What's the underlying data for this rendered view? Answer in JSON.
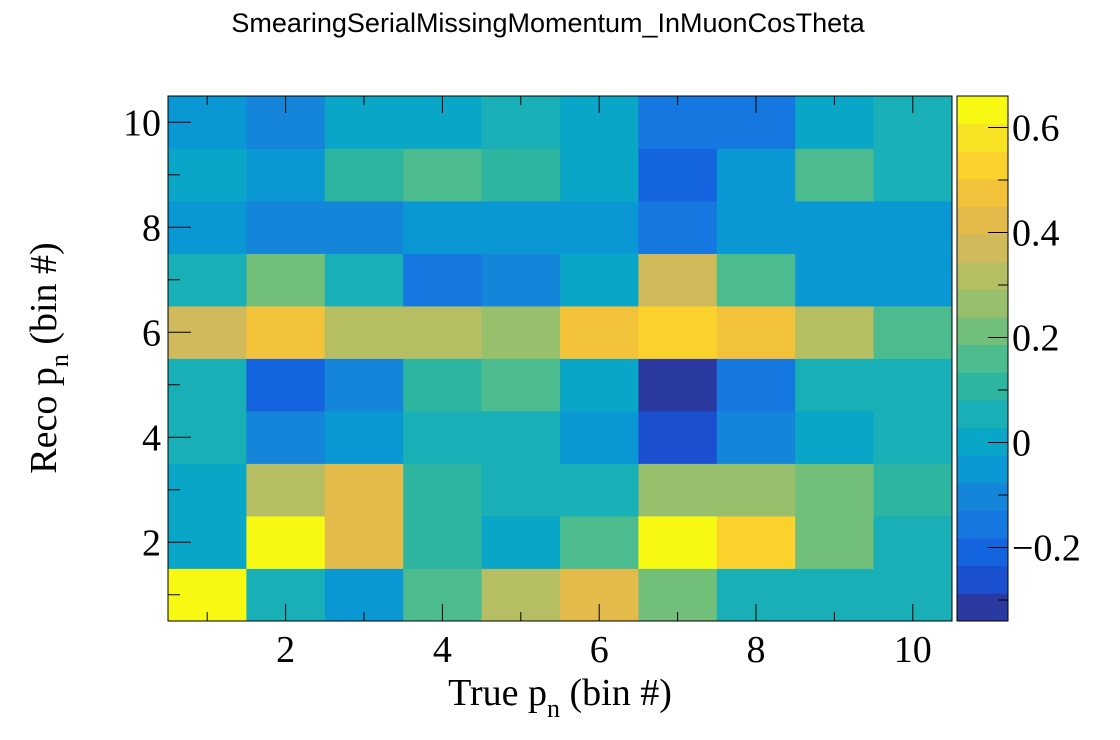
{
  "chart_data": {
    "type": "heatmap",
    "title": "SmearingSerialMissingMomentum_InMuonCosTheta",
    "xlabel": {
      "main": "True p",
      "sub": "n",
      "rest": " (bin #)"
    },
    "ylabel": {
      "main": "Reco p",
      "sub": "n",
      "rest": " (bin #)"
    },
    "x_bins": [
      1,
      2,
      3,
      4,
      5,
      6,
      7,
      8,
      9,
      10
    ],
    "y_bins": [
      1,
      2,
      3,
      4,
      5,
      6,
      7,
      8,
      9,
      10
    ],
    "xlim": [
      0.5,
      10.5
    ],
    "ylim": [
      0.5,
      10.5
    ],
    "x_ticks": [
      "2",
      "4",
      "6",
      "8",
      "10"
    ],
    "y_ticks": [
      "2",
      "4",
      "6",
      "8",
      "10"
    ],
    "z_range": [
      -0.34,
      0.66
    ],
    "z_ticks": [
      "0.6",
      "0.4",
      "0.2",
      "0",
      "−0.2"
    ],
    "palette": [
      "#2a3aa0",
      "#1a4fd0",
      "#1464e0",
      "#1478e0",
      "#1485d8",
      "#0a98d5",
      "#0aa6c8",
      "#18b0b6",
      "#2eb5a0",
      "#4cbb8e",
      "#72bf7a",
      "#98bf6c",
      "#b5be62",
      "#d0ba5c",
      "#e3bb4a",
      "#f2c33a",
      "#fbd12c",
      "#f8e324",
      "#f8f912"
    ],
    "values": [
      [
        0.62,
        0.08,
        -0.06,
        0.15,
        0.3,
        0.43,
        0.23,
        0.08,
        0.08,
        0.08
      ],
      [
        0.02,
        0.61,
        0.43,
        0.13,
        0.02,
        0.15,
        0.66,
        0.51,
        0.22,
        0.06
      ],
      [
        0.0,
        0.31,
        0.43,
        0.13,
        0.04,
        0.06,
        0.24,
        0.28,
        0.22,
        0.13
      ],
      [
        0.04,
        -0.11,
        -0.06,
        0.06,
        0.07,
        -0.04,
        -0.26,
        -0.1,
        0.02,
        0.07
      ],
      [
        0.06,
        -0.19,
        -0.12,
        0.12,
        0.18,
        0.02,
        -0.33,
        -0.18,
        0.06,
        0.07
      ],
      [
        0.37,
        0.45,
        0.33,
        0.3,
        0.24,
        0.45,
        0.51,
        0.45,
        0.33,
        0.18
      ],
      [
        0.03,
        0.19,
        0.03,
        -0.14,
        -0.08,
        0.02,
        0.37,
        0.14,
        -0.07,
        -0.07
      ],
      [
        -0.07,
        -0.12,
        -0.12,
        -0.07,
        -0.06,
        -0.06,
        -0.13,
        -0.06,
        -0.06,
        -0.06
      ],
      [
        0.0,
        -0.06,
        0.1,
        0.15,
        0.1,
        0.0,
        -0.2,
        -0.06,
        0.18,
        0.06
      ],
      [
        -0.06,
        -0.09,
        0.02,
        0.02,
        0.06,
        0.0,
        -0.13,
        -0.13,
        0.0,
        0.04
      ]
    ]
  }
}
